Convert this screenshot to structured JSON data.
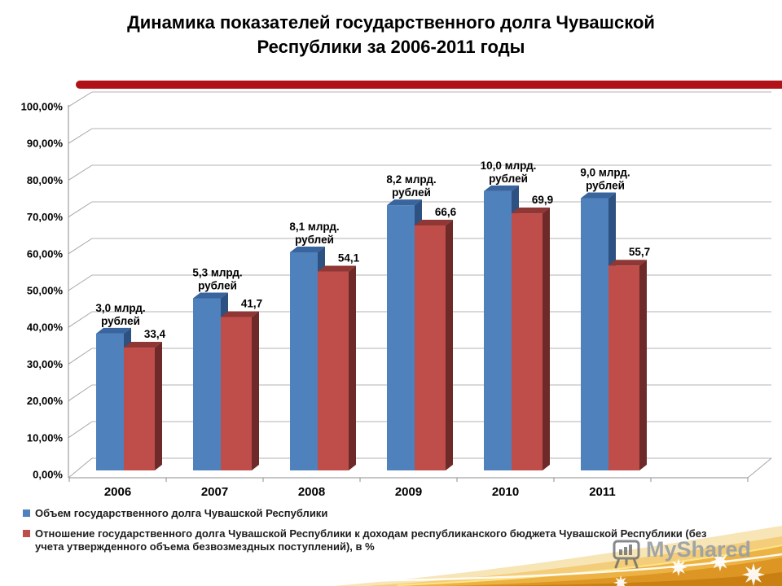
{
  "slide": {
    "title_lines": [
      "Динамика показателей государственного долга Чувашской",
      "Республики за 2006-2011 годы"
    ],
    "accent_bar_color": "#b01218"
  },
  "chart_data": {
    "type": "bar",
    "style": "3d-clustered-column",
    "title": "Динамика показателей государственного долга Чувашской Республики за 2006-2011 годы",
    "categories": [
      "2006",
      "2007",
      "2008",
      "2009",
      "2010",
      "2011"
    ],
    "y_axis": {
      "ticks": [
        "0,00%",
        "10,00%",
        "20,00%",
        "30,00%",
        "40,00%",
        "50,00%",
        "60,00%",
        "70,00%",
        "80,00%",
        "90,00%",
        "100,00%"
      ],
      "min": 0,
      "max": 100,
      "step": 10,
      "unit": "%",
      "grid": true
    },
    "series": [
      {
        "name": "Объем государственного долга Чувашской Республики",
        "color": "#4f81bd",
        "color_top": "#39649e",
        "color_side": "#2d5180",
        "unit": "млрд. рублей",
        "values_bln_rub": [
          3.0,
          5.3,
          8.1,
          8.2,
          10.0,
          9.0
        ],
        "bar_labels": [
          [
            "3,0 млрд.",
            "рублей"
          ],
          [
            "5,3 млрд.",
            "рублей"
          ],
          [
            "8,1 млрд.",
            "рублей"
          ],
          [
            "8,2 млрд.",
            "рублей"
          ],
          [
            "10,0 млрд.",
            "рублей"
          ],
          [
            "9,0 млрд.",
            "рублей"
          ]
        ],
        "display_height_pct": [
          37.2,
          46.8,
          59.3,
          72.1,
          75.9,
          74.0
        ]
      },
      {
        "name": "Отношение государственного долга Чувашской Республики к доходам республиканского бюджета Чувашской Республики (без учета утвержденного объема безвозмездных поступлений), в %",
        "color": "#bf4e4b",
        "color_top": "#8f3734",
        "color_side": "#6d2a28",
        "unit": "%",
        "values_pct": [
          33.4,
          41.7,
          54.1,
          66.6,
          69.9,
          55.7
        ],
        "bar_labels": [
          "33,4",
          "41,7",
          "54,1",
          "66,6",
          "69,9",
          "55,7"
        ]
      }
    ],
    "legend_position": "bottom-left"
  },
  "legend": {
    "items": [
      {
        "color": "#4f81bd",
        "lines": [
          "Объем государственного долга Чувашской Республики"
        ]
      },
      {
        "color": "#bf4e4b",
        "lines": [
          "Отношение государственного долга Чувашской Республики к доходам республиканского бюджета Чувашской Республики (без",
          "учета утвержденного объема безвозмездных поступлений), в %"
        ]
      }
    ]
  },
  "watermark": {
    "text": "MyShared"
  }
}
